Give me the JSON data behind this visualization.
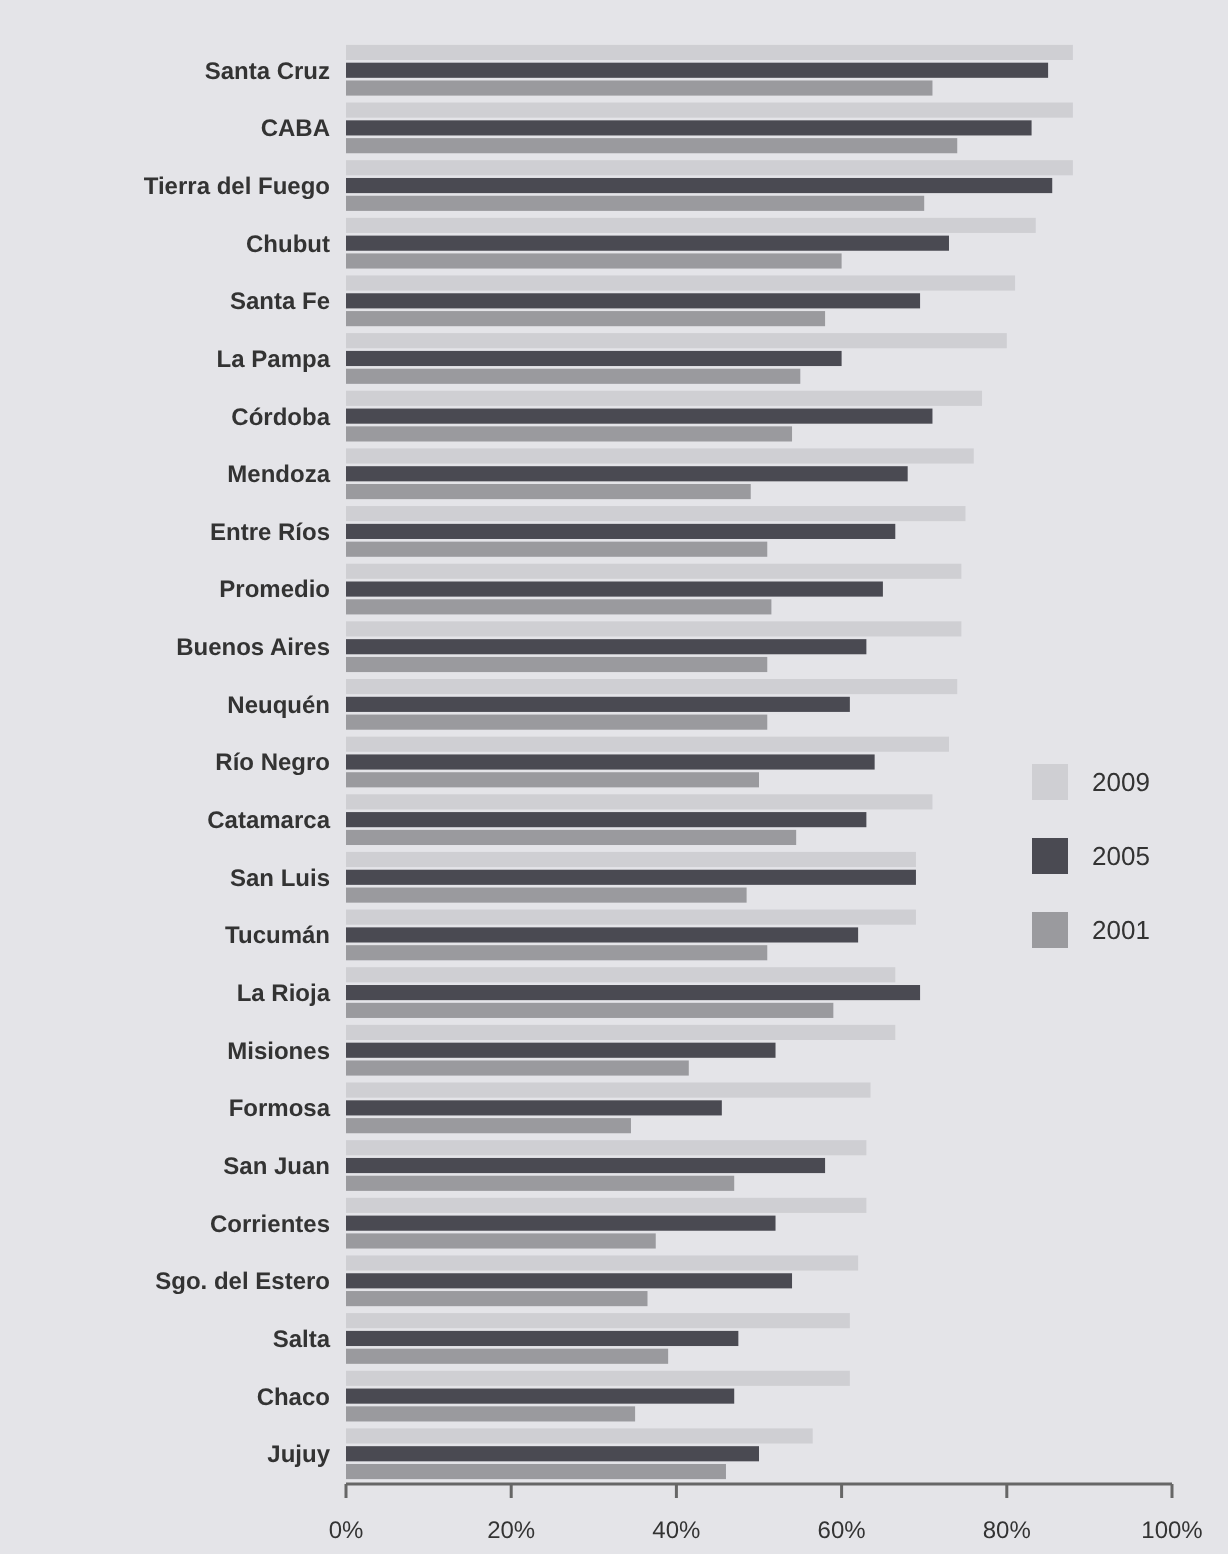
{
  "chart_data": {
    "type": "bar",
    "orientation": "horizontal",
    "categories": [
      "Santa Cruz",
      "CABA",
      "Tierra del Fuego",
      "Chubut",
      "Santa Fe",
      "La Pampa",
      "Córdoba",
      "Mendoza",
      "Entre Ríos",
      "Promedio",
      "Buenos Aires",
      "Neuquén",
      "Río Negro",
      "Catamarca",
      "San Luis",
      "Tucumán",
      "La Rioja",
      "Misiones",
      "Formosa",
      "San Juan",
      "Corrientes",
      "Sgo. del Estero",
      "Salta",
      "Chaco",
      "Jujuy"
    ],
    "series": [
      {
        "name": "2009",
        "color": "#cfcfd3",
        "values": [
          88,
          88,
          88,
          83.5,
          81,
          80,
          77,
          76,
          75,
          74.5,
          74.5,
          74,
          73,
          71,
          69,
          69,
          66.5,
          66.5,
          63.5,
          63,
          63,
          62,
          61,
          61,
          56.5
        ]
      },
      {
        "name": "2005",
        "color": "#4a4a52",
        "values": [
          85,
          83,
          85.5,
          73,
          69.5,
          60,
          71,
          68,
          66.5,
          65,
          63,
          61,
          64,
          63,
          69,
          62,
          69.5,
          52,
          45.5,
          58,
          52,
          54,
          47.5,
          47,
          50
        ]
      },
      {
        "name": "2001",
        "color": "#9a9a9e",
        "values": [
          71,
          74,
          70,
          60,
          58,
          55,
          54,
          49,
          51,
          51.5,
          51,
          51,
          50,
          54.5,
          48.5,
          51,
          59,
          41.5,
          34.5,
          47,
          37.5,
          36.5,
          39,
          35,
          46
        ]
      }
    ],
    "xlim": [
      0,
      100
    ],
    "xticks": [
      {
        "value": 0,
        "label": "0%"
      },
      {
        "value": 20,
        "label": "20%"
      },
      {
        "value": 40,
        "label": "40%"
      },
      {
        "value": 60,
        "label": "60%"
      },
      {
        "value": 80,
        "label": "80%"
      },
      {
        "value": 100,
        "label": "100%"
      }
    ],
    "legend": "right",
    "grid": false
  }
}
